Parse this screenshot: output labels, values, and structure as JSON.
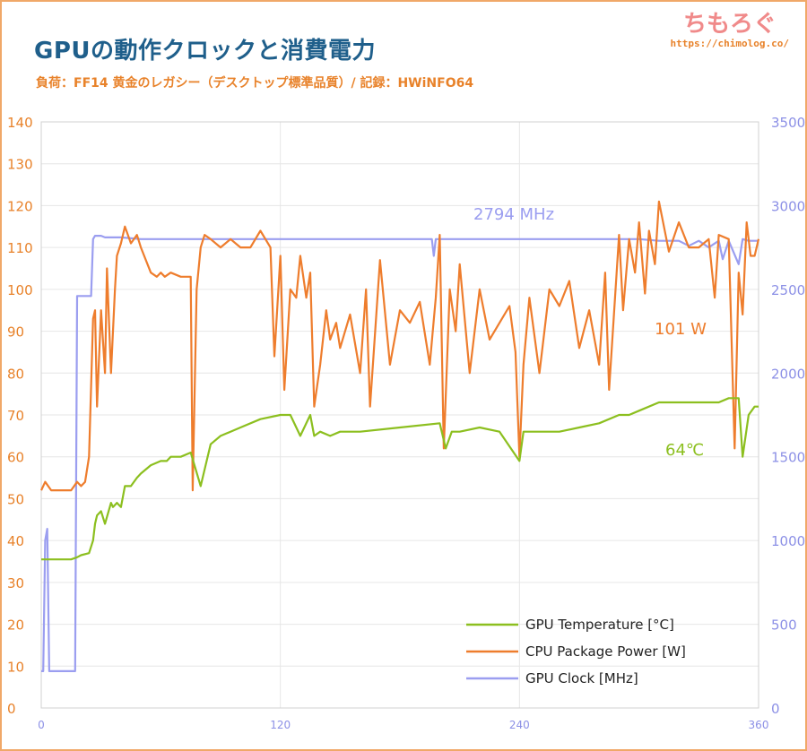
{
  "title": "GPUの動作クロックと消費電力",
  "subtitle": "負荷：FF14 黄金のレガシー（デスクトップ標準品質）/ 記録：HWiNFO64",
  "brand": {
    "name": "ちもろぐ",
    "url": "https://chimolog.co/"
  },
  "colors": {
    "temperature": "#8cbf1f",
    "power": "#ee7d2d",
    "clock": "#9b9ef0",
    "left_axis": "#e8822a",
    "right_axis": "#8c90e6",
    "grid": "#e6e6e6"
  },
  "chart_data": {
    "type": "line",
    "x_ticks": [
      "0",
      "120",
      "240",
      "360"
    ],
    "xlim": [
      0,
      360
    ],
    "y_left": {
      "ylim": [
        0,
        140
      ],
      "ticks": [
        "0",
        "10",
        "20",
        "30",
        "40",
        "50",
        "60",
        "70",
        "80",
        "90",
        "100",
        "110",
        "120",
        "130",
        "140"
      ]
    },
    "y_right": {
      "ylim": [
        0,
        3500
      ],
      "ticks": [
        "0",
        "500",
        "1000",
        "1500",
        "2000",
        "2500",
        "3000",
        "3500"
      ]
    },
    "annotations": [
      {
        "text": "2794 MHz",
        "series": "GPU Clock [MHz]"
      },
      {
        "text": "101 W",
        "series": "CPU Package Power [W]"
      },
      {
        "text": "64℃",
        "series": "GPU Temperature [°C]"
      }
    ],
    "legend_position": "bottom-right",
    "series": [
      {
        "name": "GPU Temperature [°C]",
        "axis": "left",
        "x": [
          0,
          5,
          10,
          15,
          18,
          20,
          24,
          26,
          27,
          28,
          30,
          32,
          35,
          36,
          38,
          40,
          42,
          45,
          48,
          50,
          55,
          60,
          63,
          65,
          70,
          75,
          80,
          85,
          90,
          100,
          110,
          120,
          125,
          130,
          135,
          137,
          140,
          145,
          150,
          160,
          180,
          200,
          203,
          206,
          210,
          220,
          230,
          240,
          242,
          250,
          260,
          270,
          280,
          290,
          295,
          300,
          310,
          320,
          330,
          340,
          345,
          350,
          352,
          355,
          358,
          360
        ],
        "y": [
          35.5,
          35.5,
          35.5,
          35.5,
          36,
          36.5,
          37,
          40,
          44,
          46,
          47,
          44,
          49,
          48,
          49,
          48,
          53,
          53,
          55,
          56,
          58,
          59,
          59,
          60,
          60,
          61,
          53,
          63,
          65,
          67,
          69,
          70,
          70,
          65,
          70,
          65,
          66,
          65,
          66,
          66,
          67,
          68,
          62,
          66,
          66,
          67,
          66,
          59,
          66,
          66,
          66,
          67,
          68,
          70,
          70,
          71,
          73,
          73,
          73,
          73,
          74,
          74,
          60,
          70,
          72,
          72
        ]
      },
      {
        "name": "CPU Package Power [W]",
        "axis": "left",
        "x": [
          0,
          2,
          5,
          10,
          15,
          18,
          20,
          22,
          24,
          26,
          27,
          28,
          30,
          32,
          33,
          35,
          37,
          38,
          40,
          42,
          45,
          48,
          50,
          55,
          58,
          60,
          62,
          65,
          70,
          75,
          76,
          78,
          80,
          82,
          85,
          90,
          95,
          100,
          105,
          110,
          115,
          117,
          120,
          122,
          125,
          128,
          130,
          133,
          135,
          137,
          140,
          143,
          145,
          148,
          150,
          155,
          160,
          163,
          165,
          170,
          175,
          180,
          185,
          190,
          195,
          198,
          200,
          202,
          205,
          208,
          210,
          215,
          220,
          225,
          230,
          235,
          238,
          240,
          242,
          245,
          250,
          255,
          260,
          265,
          270,
          275,
          280,
          283,
          285,
          290,
          292,
          295,
          298,
          300,
          303,
          305,
          308,
          310,
          315,
          320,
          325,
          330,
          335,
          338,
          340,
          345,
          348,
          350,
          352,
          354,
          356,
          358,
          360
        ],
        "y": [
          52,
          54,
          52,
          52,
          52,
          54,
          53,
          54,
          60,
          93,
          95,
          72,
          95,
          80,
          105,
          80,
          100,
          108,
          111,
          115,
          111,
          113,
          110,
          104,
          103,
          104,
          103,
          104,
          103,
          103,
          52,
          100,
          110,
          113,
          112,
          110,
          112,
          110,
          110,
          114,
          110,
          84,
          108,
          76,
          100,
          98,
          108,
          98,
          104,
          72,
          82,
          95,
          88,
          92,
          86,
          94,
          80,
          100,
          72,
          107,
          82,
          95,
          92,
          97,
          82,
          98,
          113,
          62,
          100,
          90,
          106,
          80,
          100,
          88,
          92,
          96,
          85,
          60,
          82,
          98,
          80,
          100,
          96,
          102,
          86,
          95,
          82,
          104,
          76,
          113,
          95,
          112,
          104,
          116,
          99,
          114,
          106,
          121,
          109,
          116,
          110,
          110,
          112,
          98,
          113,
          112,
          62,
          104,
          94,
          116,
          108,
          108,
          112
        ]
      },
      {
        "name": "GPU Clock [MHz]",
        "axis": "right",
        "x": [
          0,
          1,
          2,
          3,
          4,
          5,
          8,
          10,
          15,
          17,
          18,
          19,
          22,
          24,
          25,
          26,
          27,
          30,
          32,
          35,
          40,
          50,
          60,
          70,
          80,
          90,
          100,
          120,
          140,
          160,
          180,
          196,
          197,
          198,
          200,
          210,
          220,
          240,
          260,
          280,
          290,
          300,
          310,
          320,
          325,
          330,
          335,
          340,
          342,
          345,
          350,
          352,
          355,
          358,
          360
        ],
        "y": [
          220,
          220,
          1000,
          1070,
          220,
          220,
          220,
          220,
          220,
          220,
          2460,
          2460,
          2460,
          2460,
          2460,
          2800,
          2820,
          2820,
          2810,
          2810,
          2810,
          2800,
          2800,
          2800,
          2800,
          2800,
          2800,
          2800,
          2800,
          2800,
          2800,
          2800,
          2700,
          2800,
          2800,
          2800,
          2800,
          2800,
          2800,
          2800,
          2800,
          2800,
          2790,
          2790,
          2760,
          2790,
          2750,
          2790,
          2680,
          2790,
          2650,
          2800,
          2790,
          2790,
          2790
        ]
      }
    ]
  }
}
